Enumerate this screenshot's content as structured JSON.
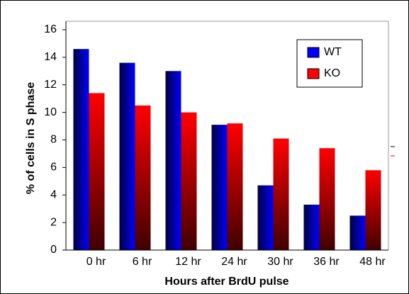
{
  "chart_data": {
    "type": "bar",
    "x_label": "Hours after BrdU pulse",
    "y_label": "% of cells in S phase",
    "categories": [
      "0 hr",
      "6 hr",
      "12 hr",
      "24 hr",
      "30 hr",
      "36 hr",
      "48 hr"
    ],
    "series": [
      {
        "name": "WT",
        "color": "#0000ff",
        "values": [
          14.6,
          13.6,
          13.0,
          9.1,
          4.7,
          3.3,
          2.5
        ]
      },
      {
        "name": "KO",
        "color": "#ff0000",
        "values": [
          11.4,
          10.5,
          10.0,
          9.2,
          8.1,
          7.4,
          5.8
        ]
      }
    ],
    "ylim": [
      0,
      16
    ],
    "yticks": [
      0,
      2,
      4,
      6,
      8,
      10,
      12,
      14,
      16
    ],
    "grid": false,
    "legend": "top-right"
  }
}
